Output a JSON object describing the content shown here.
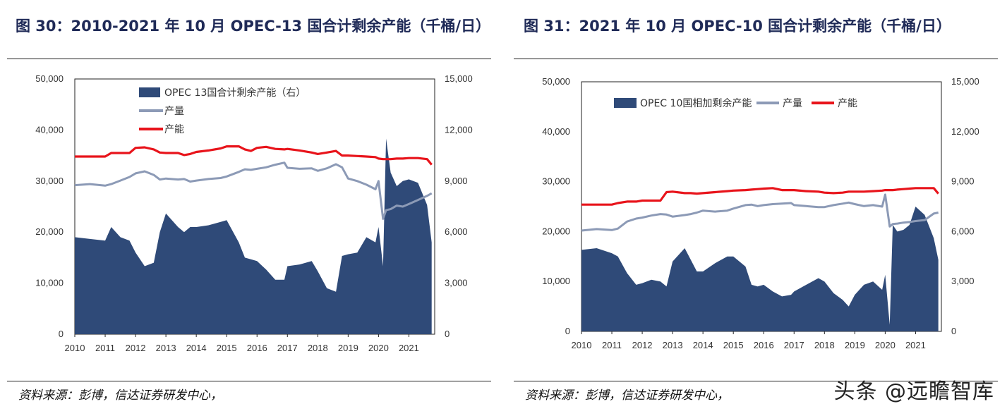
{
  "watermark": "头条 @远瞻智库",
  "colors": {
    "capacity_line": "#e8141b",
    "production_line": "#8c9ab6",
    "spare_area": "#2f4a78",
    "title": "#1f2a57"
  },
  "chart_data": [
    {
      "type": "area",
      "title": "图 30：2010-2021 年 10 月  OPEC-13 国合计剩余产能（千桶/日）",
      "source": "资料来源：彭博，信达证券研发中心，",
      "x": [
        2010.0,
        2010.5,
        2011.0,
        2011.2,
        2011.5,
        2011.8,
        2012.0,
        2012.3,
        2012.6,
        2012.8,
        2013.0,
        2013.4,
        2013.6,
        2013.8,
        2014.0,
        2014.4,
        2014.8,
        2015.0,
        2015.4,
        2015.6,
        2015.8,
        2016.0,
        2016.3,
        2016.6,
        2016.9,
        2017.0,
        2017.4,
        2017.8,
        2018.0,
        2018.3,
        2018.6,
        2018.8,
        2019.0,
        2019.3,
        2019.6,
        2019.9,
        2020.0,
        2020.15,
        2020.25,
        2020.4,
        2020.6,
        2020.8,
        2021.0,
        2021.3,
        2021.6,
        2021.75
      ],
      "xlim": [
        2010,
        2021.85
      ],
      "x_ticks": [
        "2010",
        "2011",
        "2012",
        "2013",
        "2014",
        "2015",
        "2016",
        "2017",
        "2018",
        "2019",
        "2020",
        "2021"
      ],
      "y_left_ticks": [
        "0",
        "10,000",
        "20,000",
        "30,000",
        "40,000",
        "50,000"
      ],
      "y_right_ticks": [
        "0",
        "3,000",
        "6,000",
        "9,000",
        "12,000",
        "15,000"
      ],
      "ylim_left": [
        0,
        50000
      ],
      "ylim_right": [
        0,
        15000
      ],
      "legend_position": "top-left",
      "series": [
        {
          "name": "OPEC 13国合计剩余产能（右）",
          "kind": "area",
          "axis": "right",
          "values": [
            5700,
            5600,
            5500,
            6300,
            5700,
            5500,
            4800,
            4000,
            4200,
            6000,
            7100,
            6300,
            6000,
            6300,
            6300,
            6400,
            6600,
            6700,
            5400,
            4500,
            4400,
            4300,
            3800,
            3200,
            3200,
            4000,
            4100,
            4300,
            3700,
            2700,
            2500,
            4600,
            4700,
            4800,
            5700,
            5400,
            6300,
            4000,
            11500,
            9500,
            8700,
            9000,
            9100,
            8900,
            7600,
            5400
          ]
        },
        {
          "name": "产量",
          "kind": "line",
          "axis": "left",
          "values": [
            29200,
            29400,
            29100,
            29400,
            30100,
            30800,
            31500,
            31900,
            31200,
            30300,
            30500,
            30300,
            30400,
            29900,
            30100,
            30400,
            30600,
            30900,
            31800,
            32300,
            32200,
            32400,
            32700,
            33200,
            33600,
            32600,
            32400,
            32500,
            32000,
            32500,
            33300,
            32700,
            30500,
            30000,
            29300,
            28400,
            30000,
            22600,
            24300,
            24500,
            25200,
            25000,
            25500,
            26300,
            27100,
            27600
          ]
        },
        {
          "name": "产能",
          "kind": "line",
          "axis": "left",
          "values": [
            34800,
            34800,
            34800,
            35500,
            35500,
            35500,
            36500,
            36600,
            36200,
            35600,
            35500,
            35500,
            35100,
            35300,
            35700,
            36000,
            36400,
            36800,
            36800,
            36200,
            35900,
            36500,
            36700,
            36300,
            36200,
            36300,
            36000,
            35600,
            35300,
            35600,
            35900,
            35000,
            35000,
            34900,
            34800,
            34700,
            34400,
            34300,
            34300,
            34300,
            34400,
            34400,
            34500,
            34500,
            34300,
            33200
          ]
        }
      ]
    },
    {
      "type": "area",
      "title": "图 31：2021 年 10 月  OPEC-10 国合计剩余产能（千桶/日）",
      "source": "资料来源：彭博，信达证券研发中心，",
      "x": [
        2010.0,
        2010.5,
        2011.0,
        2011.2,
        2011.5,
        2011.8,
        2012.0,
        2012.3,
        2012.6,
        2012.8,
        2013.0,
        2013.4,
        2013.6,
        2013.8,
        2014.0,
        2014.4,
        2014.8,
        2015.0,
        2015.4,
        2015.6,
        2015.8,
        2016.0,
        2016.3,
        2016.6,
        2016.9,
        2017.0,
        2017.4,
        2017.8,
        2018.0,
        2018.3,
        2018.6,
        2018.8,
        2019.0,
        2019.3,
        2019.6,
        2019.9,
        2020.0,
        2020.15,
        2020.25,
        2020.4,
        2020.6,
        2020.8,
        2021.0,
        2021.3,
        2021.6,
        2021.75
      ],
      "xlim": [
        2010,
        2021.85
      ],
      "x_ticks": [
        "2010",
        "2011",
        "2012",
        "2013",
        "2014",
        "2015",
        "2016",
        "2017",
        "2018",
        "2019",
        "2020",
        "2021"
      ],
      "y_left_ticks": [
        "0",
        "10,000",
        "20,000",
        "30,000",
        "40,000",
        "50,000"
      ],
      "y_right_ticks": [
        "0",
        "3,000",
        "6,000",
        "9,000",
        "12,000",
        "15,000"
      ],
      "ylim_left": [
        0,
        50000
      ],
      "ylim_right": [
        0,
        15000
      ],
      "legend_position": "top",
      "series": [
        {
          "name": "OPEC 10国相加剩余产能",
          "kind": "area",
          "axis": "right",
          "values": [
            4900,
            5000,
            4700,
            4500,
            3500,
            2800,
            2900,
            3100,
            3000,
            2700,
            4200,
            5000,
            4300,
            3600,
            3600,
            4100,
            4500,
            4500,
            3900,
            2800,
            2700,
            2800,
            2400,
            2100,
            2200,
            2400,
            2800,
            3200,
            3000,
            2300,
            1900,
            1500,
            2200,
            2800,
            3000,
            2500,
            3400,
            400,
            6400,
            6000,
            6100,
            6400,
            7500,
            7000,
            5600,
            4300
          ]
        },
        {
          "name": "产量",
          "kind": "line",
          "axis": "left",
          "values": [
            20200,
            20500,
            20300,
            20600,
            22000,
            22600,
            22800,
            23200,
            23500,
            23400,
            23000,
            23300,
            23500,
            23800,
            24200,
            24000,
            24200,
            24600,
            25300,
            25400,
            25100,
            25300,
            25500,
            25600,
            25700,
            25300,
            25100,
            24900,
            24900,
            25300,
            25600,
            25800,
            25500,
            25100,
            25300,
            25000,
            27400,
            21000,
            21500,
            21600,
            21800,
            21900,
            22100,
            22300,
            23600,
            23800
          ]
        },
        {
          "name": "产能",
          "kind": "line",
          "axis": "left",
          "values": [
            25400,
            25400,
            25400,
            25700,
            26000,
            26000,
            26200,
            26200,
            26200,
            27900,
            28000,
            27700,
            27700,
            27600,
            27700,
            27900,
            28100,
            28200,
            28300,
            28400,
            28500,
            28600,
            28700,
            28300,
            28300,
            28300,
            28100,
            28000,
            27800,
            27700,
            27800,
            28000,
            28000,
            28000,
            28100,
            28200,
            28300,
            28300,
            28300,
            28400,
            28500,
            28600,
            28700,
            28700,
            28700,
            27600
          ]
        }
      ]
    }
  ]
}
